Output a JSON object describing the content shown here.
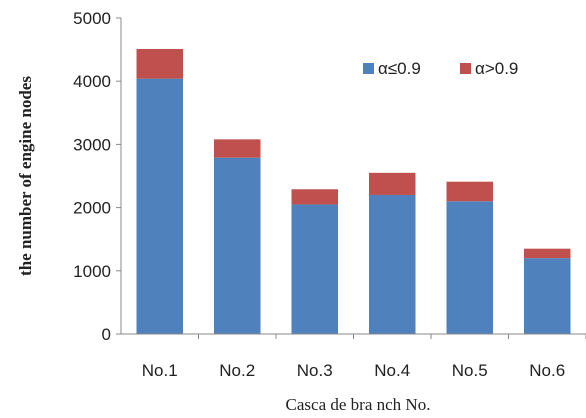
{
  "chart_data": {
    "type": "bar",
    "stacked": true,
    "categories": [
      "No.1",
      "No.2",
      "No.3",
      "No.4",
      "No.5",
      "No.6"
    ],
    "series": [
      {
        "name": "α≤0.9",
        "color": "#4f81bd",
        "values": [
          4040,
          2790,
          2050,
          2200,
          2100,
          1200
        ]
      },
      {
        "name": "α>0.9",
        "color": "#c0504d",
        "values": [
          470,
          290,
          240,
          350,
          310,
          150
        ]
      }
    ],
    "xlabel": "Casca de bra nch No.",
    "ylabel": "the number of engine nodes",
    "ylim": [
      0,
      5000
    ],
    "yticks": [
      0,
      1000,
      2000,
      3000,
      4000,
      5000
    ],
    "grid": false,
    "legend": "top-right"
  }
}
